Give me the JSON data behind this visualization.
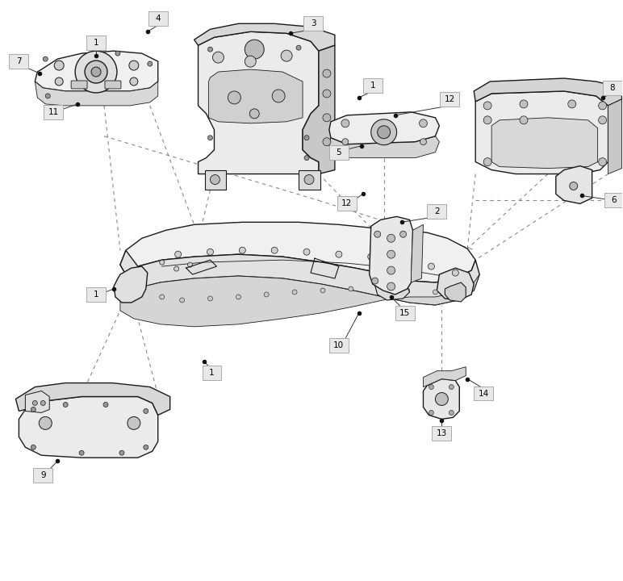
{
  "bg_color": "#ffffff",
  "line_color": "#1a1a1a",
  "label_bg": "#e8e8e8",
  "label_border": "#999999",
  "label_text_color": "#000000",
  "fig_width": 7.72,
  "fig_height": 7.2,
  "dpi": 100
}
